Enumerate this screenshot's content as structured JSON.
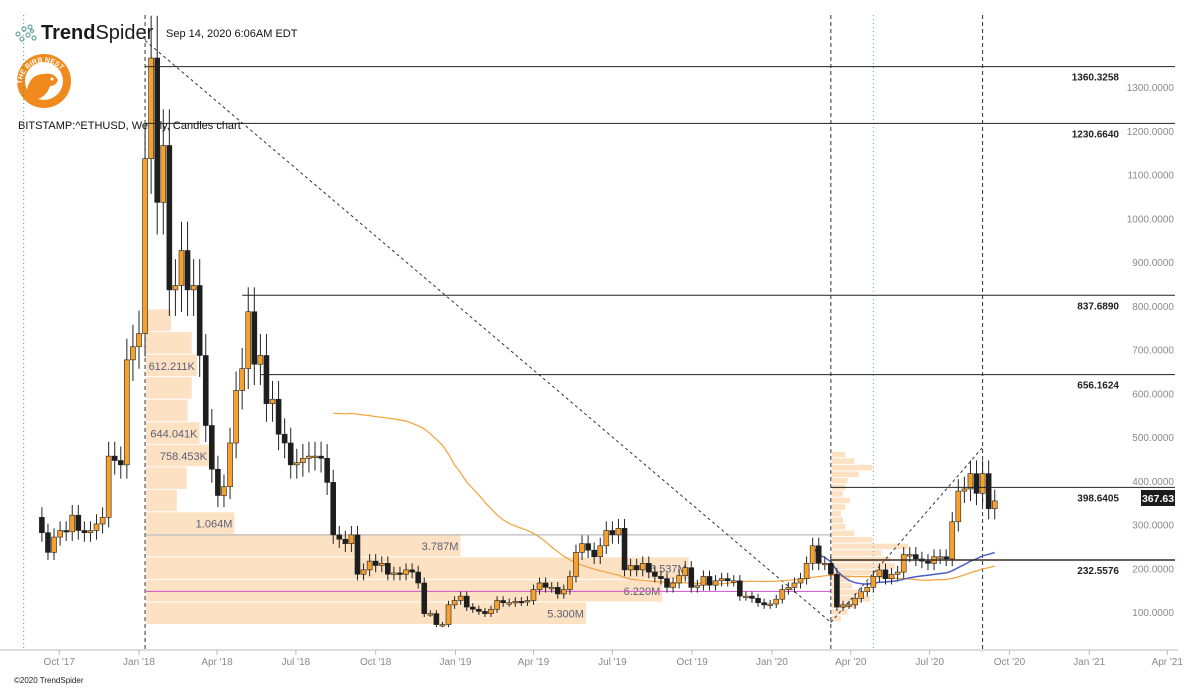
{
  "header": {
    "brand_bold": "Trend",
    "brand_light": "Spider",
    "timestamp": "Sep 14, 2020 6:06AM EDT",
    "logo_text": "THE BIRB NEST",
    "chart_title": "BITSTAMP:^ETHUSD, Weekly, Candles chart",
    "footer": "©2020 TrendSpider"
  },
  "colors": {
    "bull": "#f6a02d",
    "bear": "#1e1e1e",
    "sma": "#f2a23c",
    "vwap": "#4a5fc1",
    "volume_profile": "#fbdcb9",
    "poc": "#d04fd0",
    "brand": "#f08a1c"
  },
  "chart_data": {
    "type": "candlestick",
    "symbol": "BITSTAMP:^ETHUSD",
    "interval": "Weekly",
    "last_week": "2020-09-14",
    "weekly_close": [
      330,
      295,
      250,
      285,
      300,
      297,
      335,
      300,
      295,
      300,
      315,
      330,
      470,
      460,
      450,
      690,
      720,
      750,
      1150,
      1380,
      1050,
      1180,
      850,
      860,
      940,
      850,
      860,
      700,
      540,
      440,
      380,
      400,
      500,
      620,
      670,
      800,
      680,
      700,
      590,
      600,
      520,
      500,
      450,
      455,
      465,
      470,
      470,
      465,
      410,
      290,
      280,
      270,
      290,
      200,
      210,
      230,
      220,
      225,
      200,
      203,
      200,
      210,
      205,
      180,
      110,
      110,
      85,
      85,
      130,
      140,
      150,
      125,
      120,
      115,
      110,
      120,
      140,
      135,
      135,
      138,
      137,
      140,
      165,
      180,
      170,
      170,
      155,
      165,
      195,
      250,
      270,
      255,
      240,
      265,
      300,
      290,
      305,
      210,
      220,
      210,
      225,
      205,
      195,
      190,
      170,
      180,
      197,
      215,
      170,
      175,
      195,
      175,
      185,
      190,
      185,
      185,
      150,
      150,
      145,
      135,
      130,
      132,
      143,
      165,
      170,
      180,
      190,
      225,
      265,
      225,
      225,
      200,
      125,
      130,
      130,
      145,
      160,
      170,
      195,
      210,
      190,
      200,
      205,
      245,
      245,
      235,
      230,
      225,
      240,
      240,
      235,
      320,
      390,
      395,
      430,
      385,
      430,
      350,
      367.63
    ],
    "current_price": "367.63",
    "y_axis": {
      "min": 50,
      "max": 1420,
      "ticks": [
        "100.0000",
        "200.0000",
        "300.0000",
        "400.0000",
        "500.0000",
        "600.0000",
        "700.0000",
        "800.0000",
        "900.0000",
        "1000.0000",
        "1100.0000",
        "1200.0000",
        "1300.0000"
      ]
    },
    "x_axis": {
      "ticks": [
        {
          "label": "Oct '17",
          "date": "2017-10-01"
        },
        {
          "label": "Jan '18",
          "date": "2018-01-01"
        },
        {
          "label": "Apr '18",
          "date": "2018-04-01"
        },
        {
          "label": "Jul '18",
          "date": "2018-07-01"
        },
        {
          "label": "Oct '18",
          "date": "2018-10-01"
        },
        {
          "label": "Jan '19",
          "date": "2019-01-01"
        },
        {
          "label": "Apr '19",
          "date": "2019-04-01"
        },
        {
          "label": "Jul '19",
          "date": "2019-07-01"
        },
        {
          "label": "Oct '19",
          "date": "2019-10-01"
        },
        {
          "label": "Jan '20",
          "date": "2020-01-01"
        },
        {
          "label": "Apr '20",
          "date": "2020-04-01"
        },
        {
          "label": "Jul '20",
          "date": "2020-07-01"
        },
        {
          "label": "Oct '20",
          "date": "2020-10-01"
        },
        {
          "label": "Jan '21",
          "date": "2021-01-01"
        },
        {
          "label": "Apr '21",
          "date": "2021-04-01"
        }
      ]
    },
    "levels": [
      {
        "value": 1360.3258,
        "label": "1360.3258",
        "from": "2018-01-08"
      },
      {
        "value": 1230.664,
        "label": "1230.6640",
        "from": "2018-01-08"
      },
      {
        "value": 837.689,
        "label": "837.6890",
        "from": "2018-04-30"
      },
      {
        "value": 656.1624,
        "label": "656.1624",
        "from": "2018-05-21"
      },
      {
        "value": 398.6405,
        "label": "398.6405",
        "from": "2020-03-09"
      },
      {
        "value": 232.5576,
        "label": "232.5576",
        "from": "2020-03-09"
      }
    ],
    "vertical_markers": [
      {
        "date": "2017-08-21",
        "style": "dotted-green"
      },
      {
        "date": "2018-01-08",
        "style": "dashed"
      },
      {
        "date": "2020-03-09",
        "style": "dashed"
      },
      {
        "date": "2020-04-27",
        "style": "dotted"
      },
      {
        "date": "2020-08-31",
        "style": "dashed"
      }
    ],
    "trendlines": [
      {
        "from": {
          "date": "2018-01-08",
          "price": 1420
        },
        "to": {
          "date": "2020-03-09",
          "price": 90
        }
      },
      {
        "from": {
          "date": "2020-03-09",
          "price": 90
        },
        "to": {
          "date": "2020-08-31",
          "price": 490
        }
      }
    ],
    "volume_profile_left": {
      "from": "2018-01-08",
      "to": "2020-03-09",
      "poc": 161,
      "value_area_high": 290,
      "rows": [
        {
          "low": 84,
          "high": 135.5,
          "volume_m": 5.3,
          "label": "5.300M"
        },
        {
          "low": 135.5,
          "high": 187,
          "volume_m": 6.22,
          "label": "6.220M"
        },
        {
          "low": 187,
          "high": 238.5,
          "volume_m": 6.537,
          "label": "6.537M"
        },
        {
          "low": 238.5,
          "high": 290,
          "volume_m": 3.787,
          "label": "3.787M"
        },
        {
          "low": 290,
          "high": 341.5,
          "volume_m": 1.064,
          "label": "1.064M"
        },
        {
          "low": 341.5,
          "high": 393,
          "volume_m": 0.37
        },
        {
          "low": 393,
          "high": 444.5,
          "volume_m": 0.49
        },
        {
          "low": 444.5,
          "high": 496,
          "volume_m": 0.758,
          "label": "758.453K"
        },
        {
          "low": 496,
          "high": 547.5,
          "volume_m": 0.644,
          "label": "644.041K"
        },
        {
          "low": 547.5,
          "high": 599,
          "volume_m": 0.5
        },
        {
          "low": 599,
          "high": 650.5,
          "volume_m": 0.55
        },
        {
          "low": 650.5,
          "high": 702,
          "volume_m": 0.612,
          "label": "612.211K"
        },
        {
          "low": 702,
          "high": 753.5,
          "volume_m": 0.55
        },
        {
          "low": 753.5,
          "high": 805,
          "volume_m": 0.3
        }
      ]
    },
    "volume_profile_right": {
      "from": "2020-03-09",
      "start": 90,
      "step": 15,
      "volume_m": [
        0.2,
        0.35,
        0.55,
        0.85,
        0.6,
        0.45,
        0.4,
        0.95,
        1.4,
        1.3,
        1.1,
        1.7,
        0.9,
        0.5,
        0.3,
        0.25,
        0.2,
        0.3,
        0.4,
        0.25,
        0.3,
        0.35,
        0.6,
        0.9,
        0.5,
        0.3
      ]
    }
  }
}
